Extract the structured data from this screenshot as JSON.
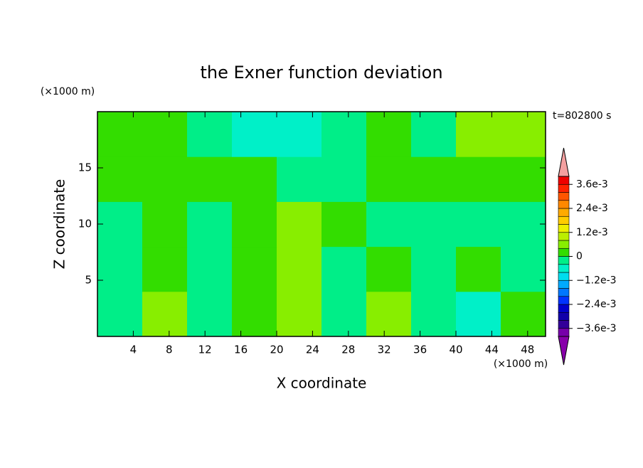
{
  "chart_data": {
    "type": "contour",
    "title": "the Exner function deviation",
    "subtitle": "t=802800 s",
    "x_label": "X coordinate",
    "y_label": "Z coordinate",
    "x_unit": "(×1000 m)",
    "y_unit": "(×1000 m)",
    "xlim": [
      0,
      50
    ],
    "ylim": [
      0,
      20
    ],
    "xticks": [
      4,
      8,
      12,
      16,
      20,
      24,
      28,
      32,
      36,
      40,
      44,
      48
    ],
    "yticks": [
      5,
      10,
      15
    ],
    "x": [
      2.5,
      7.5,
      12.5,
      17.5,
      22.5,
      27.5,
      32.5,
      37.5,
      42.5,
      47.5
    ],
    "y": [
      2,
      6,
      10,
      14,
      18
    ],
    "z": [
      [
        -0.0002,
        0.0006,
        -0.0002,
        0.0002,
        0.0006,
        -0.0002,
        0.0006,
        -0.0002,
        -0.0006,
        0.0002
      ],
      [
        -0.0002,
        0.0002,
        -0.0002,
        0.0002,
        0.0006,
        -0.0002,
        0.0002,
        -0.0002,
        0.0002,
        -0.0002
      ],
      [
        -0.0002,
        0.0002,
        -0.0002,
        0.0002,
        0.0006,
        0.0002,
        -0.0002,
        -0.0002,
        -0.0002,
        -0.0002
      ],
      [
        0.0002,
        0.0002,
        0.0002,
        0.0002,
        -0.0002,
        -0.0002,
        0.0002,
        0.0002,
        0.0002,
        0.0002
      ],
      [
        0.0002,
        0.0002,
        -0.0002,
        -0.0006,
        -0.0006,
        -0.0002,
        0.0002,
        -0.0002,
        0.0006,
        0.0006
      ]
    ],
    "levels": [
      -0.004,
      -0.0036,
      -0.0032,
      -0.0028,
      -0.0024,
      -0.002,
      -0.0016,
      -0.0012,
      -0.0008,
      -0.0004,
      0,
      0.0004,
      0.0008,
      0.0012,
      0.0016,
      0.002,
      0.0024,
      0.0028,
      0.0032,
      0.0036,
      0.004
    ],
    "colors": [
      "#7700aa",
      "#330099",
      "#1100aa",
      "#0000cc",
      "#0033ff",
      "#0077ff",
      "#00aaff",
      "#00ddee",
      "#00f0c8",
      "#00ee88",
      "#33dd00",
      "#88ee00",
      "#bbee00",
      "#eeee00",
      "#ffcc00",
      "#ffaa00",
      "#ff8800",
      "#ff5500",
      "#ff2200",
      "#ee0000"
    ],
    "under_color": "#8800aa",
    "over_color": "#f4a0a0",
    "colorbar_ticks": [
      {
        "value": 0.0036,
        "label": "3.6e-3"
      },
      {
        "value": 0.0024,
        "label": "2.4e-3"
      },
      {
        "value": 0.0012,
        "label": "1.2e-3"
      },
      0,
      {
        "value": -0.0012,
        "label": "−1.2e-3"
      },
      {
        "value": -0.0024,
        "label": "−2.4e-3"
      },
      {
        "value": -0.0036,
        "label": "−3.6e-3"
      }
    ]
  }
}
